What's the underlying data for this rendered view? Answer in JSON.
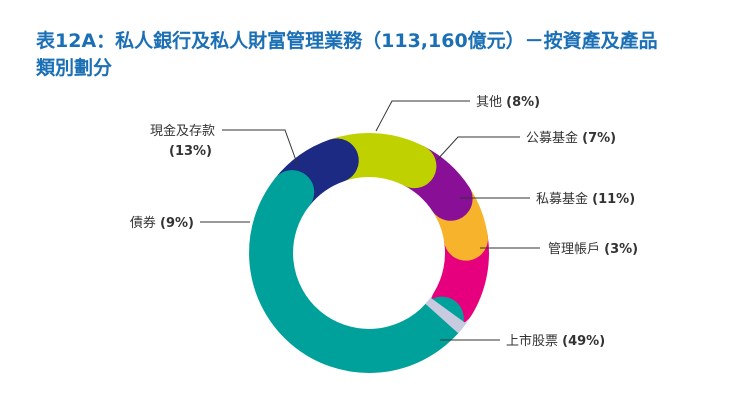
{
  "title_lines": [
    "表12A：私人銀行及私人財富管理業務（113,160億元）－按資產及產品",
    "類別劃分"
  ],
  "chart_data": {
    "type": "pie",
    "variant": "donut",
    "title": "表12A：私人銀行及私人財富管理業務（113,160億元）－按資產及產品類別劃分",
    "unit": "%",
    "slices": [
      {
        "name": "上市股票",
        "value": 49,
        "label": "(49%)",
        "color": "#00a19a"
      },
      {
        "name": "債券",
        "value": 9,
        "label": "(9%)",
        "color": "#1c2a84"
      },
      {
        "name": "現金及存款",
        "value": 13,
        "label": "(13%)",
        "color": "#bfd200"
      },
      {
        "name": "其他",
        "value": 8,
        "label": "(8%)",
        "color": "#8a0f97"
      },
      {
        "name": "公募基金",
        "value": 7,
        "label": "(7%)",
        "color": "#f7b32b"
      },
      {
        "name": "私募基金",
        "value": 11,
        "label": "(11%)",
        "color": "#e6007e"
      },
      {
        "name": "管理帳戶",
        "value": 3,
        "label": "(3%)",
        "color": "#c8cadf"
      }
    ]
  }
}
